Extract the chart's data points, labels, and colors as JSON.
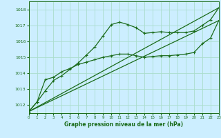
{
  "title": "Graphe pression niveau de la mer (hPa)",
  "background_color": "#cceeff",
  "grid_color": "#aaddcc",
  "line_color": "#1a6b1a",
  "x_min": 0,
  "x_max": 23,
  "y_min": 1011.5,
  "y_max": 1018.5,
  "y_ticks": [
    1012,
    1013,
    1014,
    1015,
    1016,
    1017,
    1018
  ],
  "x_ticks": [
    0,
    1,
    2,
    3,
    4,
    5,
    6,
    7,
    8,
    9,
    10,
    11,
    12,
    13,
    14,
    15,
    16,
    17,
    18,
    19,
    20,
    21,
    22,
    23
  ],
  "series1_x": [
    0,
    1,
    2,
    3,
    4,
    5,
    6,
    7,
    8,
    9,
    10,
    11,
    12,
    13,
    14,
    15,
    16,
    17,
    18,
    19,
    20,
    21,
    22,
    23
  ],
  "series1_y": [
    1011.6,
    1012.2,
    1012.9,
    1013.55,
    1013.85,
    1014.25,
    1014.65,
    1015.15,
    1015.65,
    1016.35,
    1017.05,
    1017.2,
    1017.05,
    1016.85,
    1016.5,
    1016.55,
    1016.6,
    1016.55,
    1016.55,
    1016.55,
    1016.65,
    1017.0,
    1017.35,
    1018.1
  ],
  "series2_x": [
    0,
    1,
    2,
    3,
    4,
    5,
    6,
    7,
    8,
    9,
    10,
    11,
    12,
    13,
    14,
    15,
    16,
    17,
    18,
    19,
    20,
    21,
    22,
    23
  ],
  "series2_y": [
    1011.6,
    1012.2,
    1013.6,
    1013.75,
    1014.1,
    1014.3,
    1014.55,
    1014.7,
    1014.85,
    1015.0,
    1015.1,
    1015.2,
    1015.2,
    1015.1,
    1015.0,
    1015.05,
    1015.1,
    1015.1,
    1015.15,
    1015.2,
    1015.3,
    1015.85,
    1016.2,
    1017.3
  ],
  "series3_x": [
    0,
    23
  ],
  "series3_y": [
    1011.6,
    1018.1
  ],
  "series4_x": [
    0,
    23
  ],
  "series4_y": [
    1011.6,
    1017.3
  ]
}
